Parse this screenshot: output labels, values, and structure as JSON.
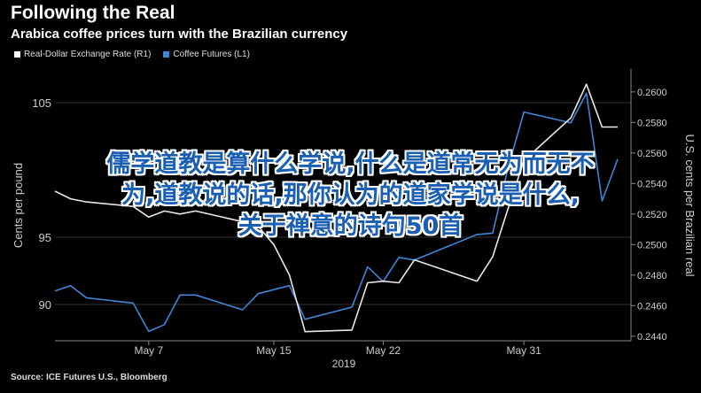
{
  "header": {
    "title": "Following the Real",
    "subtitle": "Arabica coffee prices turn with the Brazilian currency"
  },
  "legend": {
    "items": [
      {
        "label": "Real-Dollar Exchange Rate (R1)",
        "color": "#ffffff"
      },
      {
        "label": "Coffee Futures (L1)",
        "color": "#3d86d8"
      }
    ]
  },
  "source": "Source: ICE Futures U.S., Bloomberg",
  "overlay": {
    "lines": [
      "儒学道教是算什么学说,什么是道常无为而无不",
      "为,道教说的话,那你认为的道家学说是什么,",
      "关于禅意的诗句50首"
    ]
  },
  "chart_data": {
    "type": "line",
    "x_ticks": [
      "May 7",
      "May 15",
      "May 22",
      "May 31"
    ],
    "x_year_label": "2019",
    "y_left": {
      "label": "Cents per pound",
      "ticks": [
        "90",
        "95",
        "105"
      ],
      "range": [
        87.3,
        107.5
      ]
    },
    "y_right": {
      "label": "U.S. cents per Brazilian real",
      "ticks": [
        "0.2440",
        "0.2460",
        "0.2480",
        "0.2500",
        "0.2520",
        "0.2540",
        "0.2560",
        "0.2580",
        "0.2600"
      ],
      "range": [
        0.2437,
        0.2615
      ]
    },
    "x": [
      "2019-05-01",
      "2019-05-02",
      "2019-05-03",
      "2019-05-06",
      "2019-05-07",
      "2019-05-08",
      "2019-05-09",
      "2019-05-10",
      "2019-05-13",
      "2019-05-14",
      "2019-05-15",
      "2019-05-16",
      "2019-05-17",
      "2019-05-20",
      "2019-05-21",
      "2019-05-22",
      "2019-05-23",
      "2019-05-24",
      "2019-05-28",
      "2019-05-29",
      "2019-05-30",
      "2019-05-31",
      "2019-06-03",
      "2019-06-04",
      "2019-06-05",
      "2019-06-06"
    ],
    "series": [
      {
        "name": "Coffee Futures (L1)",
        "axis": "left",
        "color": "#3d86d8",
        "values": [
          91.0,
          91.4,
          90.5,
          90.1,
          88.0,
          88.5,
          90.7,
          90.7,
          89.6,
          90.8,
          91.1,
          91.4,
          88.9,
          89.8,
          92.8,
          91.7,
          93.5,
          93.3,
          95.2,
          95.3,
          100.2,
          104.3,
          103.5,
          105.7,
          97.7,
          100.8
        ]
      },
      {
        "name": "Real-Dollar Exchange Rate (R1)",
        "axis": "right",
        "color": "#e8e8e8",
        "values": [
          0.2535,
          0.253,
          0.2528,
          0.2525,
          0.2518,
          0.2522,
          0.252,
          0.2522,
          0.2515,
          0.2512,
          0.25,
          0.248,
          0.2443,
          0.2444,
          0.2475,
          0.2476,
          0.2475,
          0.249,
          0.2476,
          0.2492,
          0.2524,
          0.2555,
          0.2583,
          0.2605,
          0.2577,
          0.2577
        ]
      }
    ]
  }
}
